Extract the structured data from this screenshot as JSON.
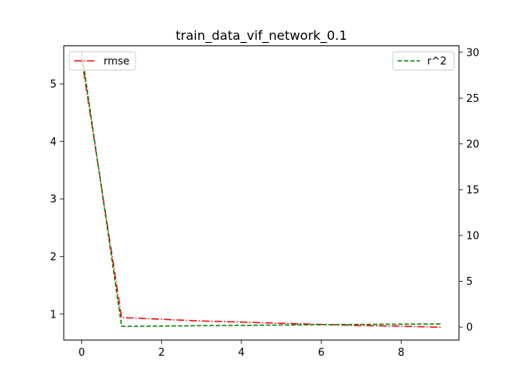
{
  "chart_data": {
    "type": "line",
    "title": "train_data_vif_network_0.1",
    "xlabel": "",
    "ylabel": "",
    "y2label": "",
    "xlim": [
      -0.45,
      9.45
    ],
    "ylim": [
      0.55,
      5.66
    ],
    "y2lim": [
      -1.4,
      30.7
    ],
    "x_ticks": [
      0,
      2,
      4,
      6,
      8
    ],
    "y_ticks": [
      1,
      2,
      3,
      4,
      5
    ],
    "y2_ticks": [
      0,
      5,
      10,
      15,
      20,
      25,
      30
    ],
    "grid": false,
    "series": [
      {
        "name": "rmse",
        "axis": "left",
        "color": "#ff0000",
        "linestyle": "dashdot",
        "legend": "top-left",
        "x": [
          0,
          1,
          2,
          3,
          4,
          5,
          6,
          7,
          8,
          9
        ],
        "values": [
          5.43,
          0.94,
          0.91,
          0.88,
          0.86,
          0.84,
          0.82,
          0.8,
          0.79,
          0.77
        ]
      },
      {
        "name": "r^2",
        "axis": "right",
        "color": "#008000",
        "linestyle": "dashed",
        "legend": "top-right",
        "x": [
          0,
          1,
          2,
          3,
          4,
          5,
          6,
          7,
          8,
          9
        ],
        "values": [
          30.0,
          0.08,
          0.12,
          0.16,
          0.2,
          0.23,
          0.27,
          0.3,
          0.33,
          0.35
        ]
      }
    ]
  }
}
